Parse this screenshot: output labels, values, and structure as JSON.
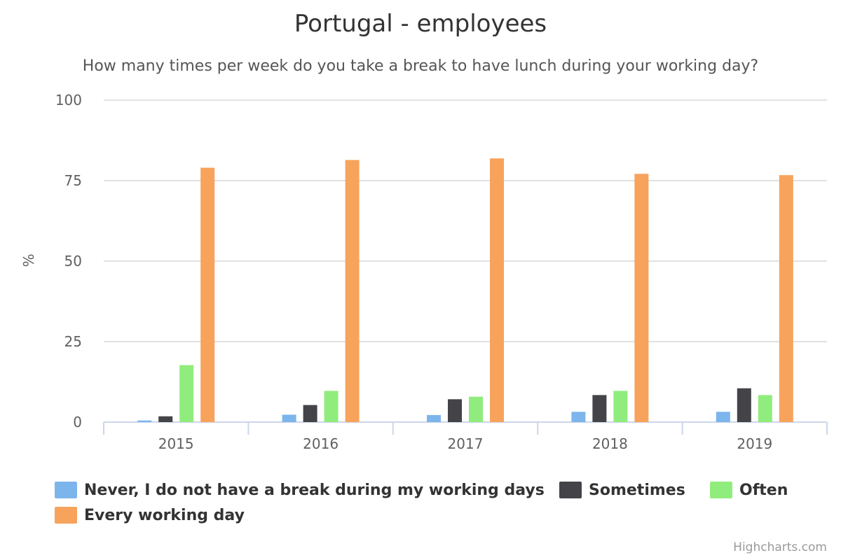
{
  "chart_data": {
    "type": "bar",
    "title": "Portugal - employees",
    "subtitle": "How many times per week do you take a break to have lunch during your working day?",
    "xlabel": "",
    "ylabel": "%",
    "ylim": [
      0,
      100
    ],
    "yticks": [
      0,
      25,
      50,
      75,
      100
    ],
    "grid": true,
    "legend": "bottom",
    "categories": [
      "2015",
      "2016",
      "2017",
      "2018",
      "2019"
    ],
    "series": [
      {
        "name": "Never, I do not have a break during my working days",
        "color": "#7cb5ec",
        "values": [
          0.5,
          2.3,
          2.2,
          3.2,
          3.2
        ]
      },
      {
        "name": "Sometimes",
        "color": "#434348",
        "values": [
          1.8,
          5.3,
          7.1,
          8.4,
          10.5
        ]
      },
      {
        "name": "Often",
        "color": "#90ed7d",
        "values": [
          17.7,
          9.7,
          7.9,
          9.7,
          8.4
        ]
      },
      {
        "name": "Every working day",
        "color": "#f7a35c",
        "values": [
          79.0,
          81.4,
          81.9,
          77.1,
          76.7
        ]
      }
    ]
  },
  "credits": "Highcharts.com"
}
